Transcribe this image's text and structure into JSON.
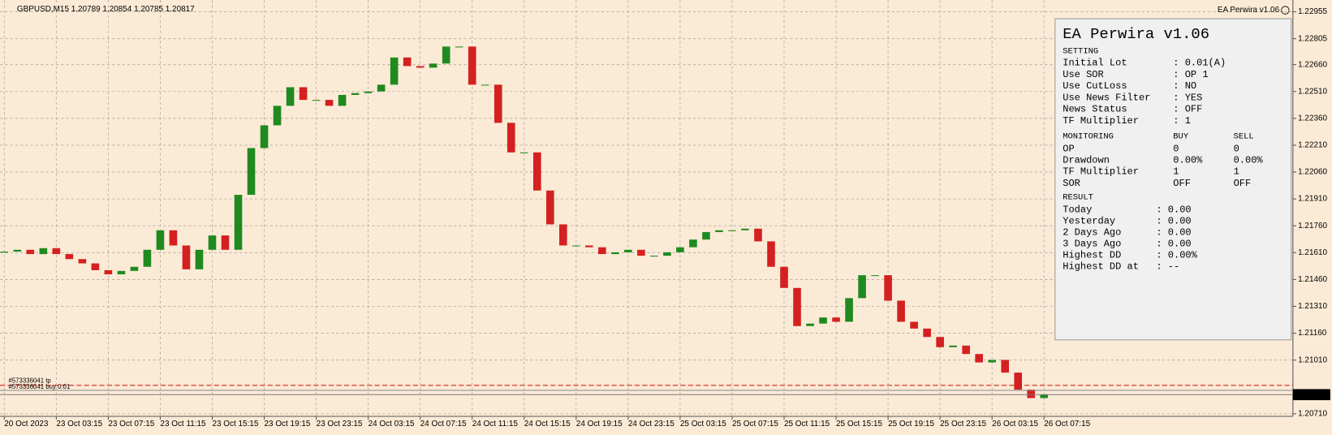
{
  "chart_data": {
    "type": "candlestick",
    "header": "GBPUSD,M15  1.20789 1.20854 1.20785 1.20817",
    "ea_label": "EA Perwira v1.06",
    "x": [
      0,
      1,
      2,
      3,
      4,
      5,
      6,
      7,
      8,
      9,
      10,
      11,
      12,
      13,
      14,
      15,
      16,
      17,
      18,
      19,
      20,
      21,
      22,
      23,
      24,
      25,
      26,
      27,
      28,
      29,
      30,
      31,
      32,
      33,
      34,
      35,
      36,
      37,
      38,
      39,
      40,
      41,
      42,
      43,
      44,
      45,
      46,
      47,
      48,
      49,
      50,
      51,
      52,
      53,
      54,
      55,
      56,
      57,
      58,
      59,
      60,
      61,
      62,
      63,
      64,
      65,
      66,
      67,
      68,
      69,
      70,
      71,
      72,
      73,
      74,
      75,
      76,
      77,
      78,
      79,
      80
    ],
    "open": [
      1.2161,
      1.21616,
      1.21626,
      1.21602,
      1.21635,
      1.21602,
      1.21574,
      1.2155,
      1.21512,
      1.21489,
      1.21508,
      1.21531,
      1.21626,
      1.21735,
      1.2165,
      1.21517,
      1.21626,
      1.21706,
      1.21626,
      1.21933,
      1.22194,
      1.22321,
      1.2243,
      1.22534,
      1.22463,
      1.22463,
      1.2243,
      1.22491,
      1.22501,
      1.2251,
      1.22548,
      1.227,
      1.22652,
      1.22643,
      1.22666,
      1.22761,
      1.22761,
      1.22548,
      1.22548,
      1.22335,
      1.2217,
      1.2217,
      1.21957,
      1.21768,
      1.2165,
      1.2165,
      1.2164,
      1.21602,
      1.21612,
      1.21626,
      1.21593,
      1.21593,
      1.21612,
      1.2164,
      1.21683,
      1.21725,
      1.21735,
      1.21735,
      1.21744,
      1.21673,
      1.21531,
      1.21413,
      1.212,
      1.21214,
      1.21248,
      1.21224,
      1.21356,
      1.21484,
      1.21484,
      1.21342,
      1.21224,
      1.21186,
      1.21139,
      1.21082,
      1.21091,
      1.21044,
      1.20997,
      1.21011,
      1.2094,
      1.20845,
      1.20798
    ],
    "close": [
      1.21616,
      1.21626,
      1.21602,
      1.21635,
      1.21602,
      1.21574,
      1.2155,
      1.21512,
      1.21489,
      1.21508,
      1.21531,
      1.21626,
      1.21735,
      1.2165,
      1.21517,
      1.21626,
      1.21706,
      1.21626,
      1.21933,
      1.22194,
      1.22321,
      1.2243,
      1.22534,
      1.22463,
      1.22463,
      1.2243,
      1.22491,
      1.22501,
      1.2251,
      1.22548,
      1.227,
      1.22652,
      1.22643,
      1.22666,
      1.22761,
      1.22761,
      1.22548,
      1.22548,
      1.22335,
      1.2217,
      1.2217,
      1.21957,
      1.21768,
      1.2165,
      1.2165,
      1.2164,
      1.21602,
      1.21612,
      1.21626,
      1.21593,
      1.21593,
      1.21612,
      1.2164,
      1.21683,
      1.21725,
      1.21735,
      1.21735,
      1.21744,
      1.21673,
      1.21531,
      1.21413,
      1.212,
      1.21214,
      1.21248,
      1.21224,
      1.21356,
      1.21484,
      1.21484,
      1.21342,
      1.21224,
      1.21186,
      1.21139,
      1.21082,
      1.21091,
      1.21044,
      1.20997,
      1.21011,
      1.2094,
      1.20845,
      1.20798,
      1.20817
    ],
    "bull_color": "#1f8a1f",
    "bear_color": "#d42020",
    "xlim": [
      -0.33,
      99.15
    ],
    "xticks": [
      {
        "value": 0,
        "label": "20 Oct 2023"
      },
      {
        "value": 4,
        "label": "23 Oct 03:15"
      },
      {
        "value": 8,
        "label": "23 Oct 07:15"
      },
      {
        "value": 12,
        "label": "23 Oct 11:15"
      },
      {
        "value": 16,
        "label": "23 Oct 15:15"
      },
      {
        "value": 20,
        "label": "23 Oct 19:15"
      },
      {
        "value": 24,
        "label": "23 Oct 23:15"
      },
      {
        "value": 28,
        "label": "24 Oct 03:15"
      },
      {
        "value": 32,
        "label": "24 Oct 07:15"
      },
      {
        "value": 36,
        "label": "24 Oct 11:15"
      },
      {
        "value": 40,
        "label": "24 Oct 15:15"
      },
      {
        "value": 44,
        "label": "24 Oct 19:15"
      },
      {
        "value": 48,
        "label": "24 Oct 23:15"
      },
      {
        "value": 52,
        "label": "25 Oct 03:15"
      },
      {
        "value": 56,
        "label": "25 Oct 07:15"
      },
      {
        "value": 60,
        "label": "25 Oct 11:15"
      },
      {
        "value": 64,
        "label": "25 Oct 15:15"
      },
      {
        "value": 68,
        "label": "25 Oct 19:15"
      },
      {
        "value": 72,
        "label": "25 Oct 23:15"
      },
      {
        "value": 76,
        "label": "26 Oct 03:15"
      },
      {
        "value": 80,
        "label": "26 Oct 07:15"
      }
    ],
    "ylim": [
      1.20696,
      1.23021
    ],
    "yticks": [
      1.22955,
      1.22805,
      {
        "value": 1.2266,
        "label": "1.22660"
      },
      {
        "value": 1.2251,
        "label": "1.22510"
      },
      {
        "value": 1.2236,
        "label": "1.22360"
      },
      {
        "value": 1.2221,
        "label": "1.22210"
      },
      {
        "value": 1.2206,
        "label": "1.22060"
      },
      {
        "value": 1.2191,
        "label": "1.21910"
      },
      {
        "value": 1.2176,
        "label": "1.21760"
      },
      {
        "value": 1.2161,
        "label": "1.21610"
      },
      {
        "value": 1.2146,
        "label": "1.21460"
      },
      {
        "value": 1.2131,
        "label": "1.21310"
      },
      {
        "value": 1.2116,
        "label": "1.21160"
      },
      {
        "value": 1.2101,
        "label": "1.21010"
      },
      {
        "value": 1.2071,
        "label": "1.20710"
      }
    ],
    "grid": true,
    "current_price": 1.20817,
    "orders": [
      {
        "label": "#573336041 tp",
        "price": 1.20869,
        "color": "#d42020"
      },
      {
        "label": "#573336041 buy 0.01",
        "price": 1.20841,
        "color": "#8a8a8a"
      }
    ]
  },
  "panel": {
    "title": "EA Perwira v1.06",
    "setting": {
      "heading": "SETTING",
      "rows": [
        [
          "Initial Lot",
          ": 0.01(A)"
        ],
        [
          "Use SOR",
          ": OP 1"
        ],
        [
          "Use CutLoss",
          ": NO"
        ],
        [
          "Use News Filter",
          ": YES"
        ],
        [
          "News Status",
          ": OFF"
        ],
        [
          "TF Multiplier",
          ": 1"
        ]
      ]
    },
    "monitoring": {
      "heading": "MONITORING",
      "buy": "BUY",
      "sell": "SELL",
      "rows": [
        [
          "OP",
          "0",
          "0"
        ],
        [
          "Drawdown",
          "0.00%",
          "0.00%"
        ],
        [
          "TF Multiplier",
          "1",
          "1"
        ],
        [
          "SOR",
          "OFF",
          "OFF"
        ]
      ]
    },
    "result": {
      "heading": "RESULT",
      "rows": [
        [
          "Today",
          ": 0.00"
        ],
        [
          "Yesterday",
          ": 0.00"
        ],
        [
          "2 Days Ago",
          ": 0.00"
        ],
        [
          "3 Days Ago",
          ": 0.00"
        ],
        [
          "Highest DD",
          ": 0.00%"
        ],
        [
          "Highest DD at",
          ": --"
        ]
      ]
    }
  }
}
